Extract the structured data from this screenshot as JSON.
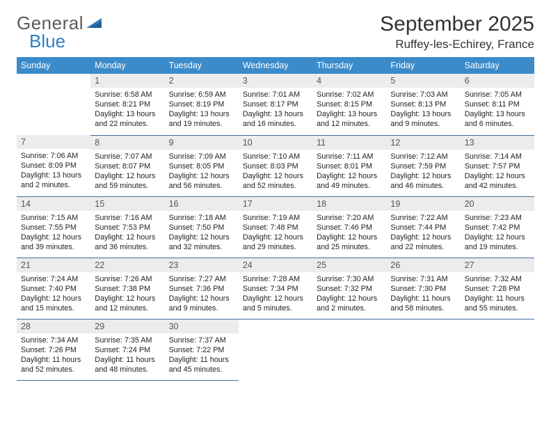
{
  "brand": {
    "part1": "General",
    "part2": "Blue"
  },
  "title": {
    "month": "September 2025",
    "location": "Ruffey-les-Echirey, France"
  },
  "colors": {
    "header_bg": "#3b8bca",
    "header_text": "#ffffff",
    "daynum_bg": "#ececec",
    "daynum_text": "#555555",
    "row_divider": "#3b6fa0",
    "body_text": "#222222",
    "logo_gray": "#5a5a5a",
    "logo_blue": "#2f7fc2"
  },
  "weekdays": [
    "Sunday",
    "Monday",
    "Tuesday",
    "Wednesday",
    "Thursday",
    "Friday",
    "Saturday"
  ],
  "weeks": [
    [
      null,
      {
        "n": "1",
        "sr": "Sunrise: 6:58 AM",
        "ss": "Sunset: 8:21 PM",
        "d1": "Daylight: 13 hours",
        "d2": "and 22 minutes."
      },
      {
        "n": "2",
        "sr": "Sunrise: 6:59 AM",
        "ss": "Sunset: 8:19 PM",
        "d1": "Daylight: 13 hours",
        "d2": "and 19 minutes."
      },
      {
        "n": "3",
        "sr": "Sunrise: 7:01 AM",
        "ss": "Sunset: 8:17 PM",
        "d1": "Daylight: 13 hours",
        "d2": "and 16 minutes."
      },
      {
        "n": "4",
        "sr": "Sunrise: 7:02 AM",
        "ss": "Sunset: 8:15 PM",
        "d1": "Daylight: 13 hours",
        "d2": "and 12 minutes."
      },
      {
        "n": "5",
        "sr": "Sunrise: 7:03 AM",
        "ss": "Sunset: 8:13 PM",
        "d1": "Daylight: 13 hours",
        "d2": "and 9 minutes."
      },
      {
        "n": "6",
        "sr": "Sunrise: 7:05 AM",
        "ss": "Sunset: 8:11 PM",
        "d1": "Daylight: 13 hours",
        "d2": "and 6 minutes."
      }
    ],
    [
      {
        "n": "7",
        "sr": "Sunrise: 7:06 AM",
        "ss": "Sunset: 8:09 PM",
        "d1": "Daylight: 13 hours",
        "d2": "and 2 minutes."
      },
      {
        "n": "8",
        "sr": "Sunrise: 7:07 AM",
        "ss": "Sunset: 8:07 PM",
        "d1": "Daylight: 12 hours",
        "d2": "and 59 minutes."
      },
      {
        "n": "9",
        "sr": "Sunrise: 7:09 AM",
        "ss": "Sunset: 8:05 PM",
        "d1": "Daylight: 12 hours",
        "d2": "and 56 minutes."
      },
      {
        "n": "10",
        "sr": "Sunrise: 7:10 AM",
        "ss": "Sunset: 8:03 PM",
        "d1": "Daylight: 12 hours",
        "d2": "and 52 minutes."
      },
      {
        "n": "11",
        "sr": "Sunrise: 7:11 AM",
        "ss": "Sunset: 8:01 PM",
        "d1": "Daylight: 12 hours",
        "d2": "and 49 minutes."
      },
      {
        "n": "12",
        "sr": "Sunrise: 7:12 AM",
        "ss": "Sunset: 7:59 PM",
        "d1": "Daylight: 12 hours",
        "d2": "and 46 minutes."
      },
      {
        "n": "13",
        "sr": "Sunrise: 7:14 AM",
        "ss": "Sunset: 7:57 PM",
        "d1": "Daylight: 12 hours",
        "d2": "and 42 minutes."
      }
    ],
    [
      {
        "n": "14",
        "sr": "Sunrise: 7:15 AM",
        "ss": "Sunset: 7:55 PM",
        "d1": "Daylight: 12 hours",
        "d2": "and 39 minutes."
      },
      {
        "n": "15",
        "sr": "Sunrise: 7:16 AM",
        "ss": "Sunset: 7:53 PM",
        "d1": "Daylight: 12 hours",
        "d2": "and 36 minutes."
      },
      {
        "n": "16",
        "sr": "Sunrise: 7:18 AM",
        "ss": "Sunset: 7:50 PM",
        "d1": "Daylight: 12 hours",
        "d2": "and 32 minutes."
      },
      {
        "n": "17",
        "sr": "Sunrise: 7:19 AM",
        "ss": "Sunset: 7:48 PM",
        "d1": "Daylight: 12 hours",
        "d2": "and 29 minutes."
      },
      {
        "n": "18",
        "sr": "Sunrise: 7:20 AM",
        "ss": "Sunset: 7:46 PM",
        "d1": "Daylight: 12 hours",
        "d2": "and 25 minutes."
      },
      {
        "n": "19",
        "sr": "Sunrise: 7:22 AM",
        "ss": "Sunset: 7:44 PM",
        "d1": "Daylight: 12 hours",
        "d2": "and 22 minutes."
      },
      {
        "n": "20",
        "sr": "Sunrise: 7:23 AM",
        "ss": "Sunset: 7:42 PM",
        "d1": "Daylight: 12 hours",
        "d2": "and 19 minutes."
      }
    ],
    [
      {
        "n": "21",
        "sr": "Sunrise: 7:24 AM",
        "ss": "Sunset: 7:40 PM",
        "d1": "Daylight: 12 hours",
        "d2": "and 15 minutes."
      },
      {
        "n": "22",
        "sr": "Sunrise: 7:26 AM",
        "ss": "Sunset: 7:38 PM",
        "d1": "Daylight: 12 hours",
        "d2": "and 12 minutes."
      },
      {
        "n": "23",
        "sr": "Sunrise: 7:27 AM",
        "ss": "Sunset: 7:36 PM",
        "d1": "Daylight: 12 hours",
        "d2": "and 9 minutes."
      },
      {
        "n": "24",
        "sr": "Sunrise: 7:28 AM",
        "ss": "Sunset: 7:34 PM",
        "d1": "Daylight: 12 hours",
        "d2": "and 5 minutes."
      },
      {
        "n": "25",
        "sr": "Sunrise: 7:30 AM",
        "ss": "Sunset: 7:32 PM",
        "d1": "Daylight: 12 hours",
        "d2": "and 2 minutes."
      },
      {
        "n": "26",
        "sr": "Sunrise: 7:31 AM",
        "ss": "Sunset: 7:30 PM",
        "d1": "Daylight: 11 hours",
        "d2": "and 58 minutes."
      },
      {
        "n": "27",
        "sr": "Sunrise: 7:32 AM",
        "ss": "Sunset: 7:28 PM",
        "d1": "Daylight: 11 hours",
        "d2": "and 55 minutes."
      }
    ],
    [
      {
        "n": "28",
        "sr": "Sunrise: 7:34 AM",
        "ss": "Sunset: 7:26 PM",
        "d1": "Daylight: 11 hours",
        "d2": "and 52 minutes."
      },
      {
        "n": "29",
        "sr": "Sunrise: 7:35 AM",
        "ss": "Sunset: 7:24 PM",
        "d1": "Daylight: 11 hours",
        "d2": "and 48 minutes."
      },
      {
        "n": "30",
        "sr": "Sunrise: 7:37 AM",
        "ss": "Sunset: 7:22 PM",
        "d1": "Daylight: 11 hours",
        "d2": "and 45 minutes."
      },
      null,
      null,
      null,
      null
    ]
  ]
}
